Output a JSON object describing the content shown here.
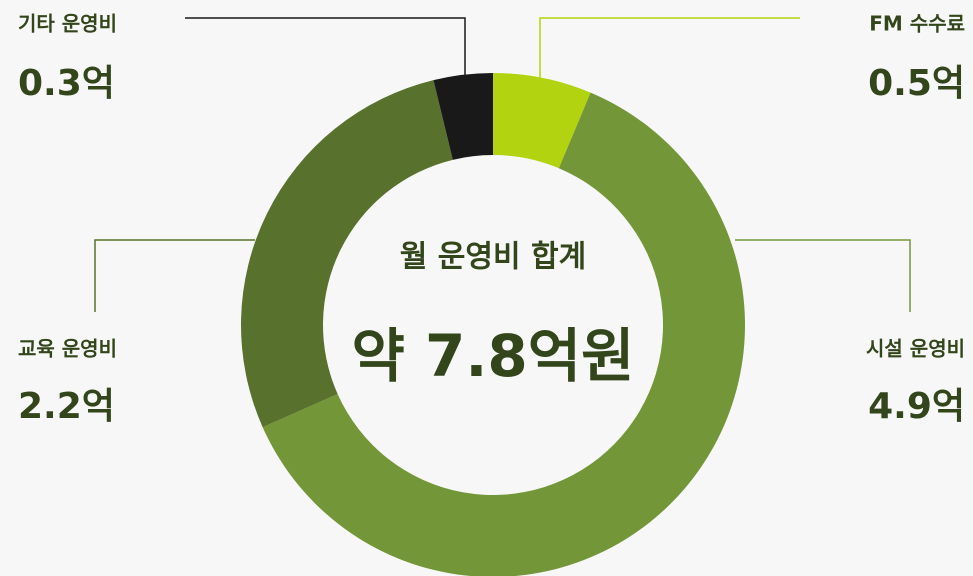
{
  "chart_data": {
    "type": "pie",
    "categories": [
      "FM 수수료",
      "시설 운영비",
      "교육 운영비",
      "기타 운영비"
    ],
    "values": [
      0.5,
      4.9,
      2.2,
      0.3
    ],
    "value_labels": [
      "0.5억",
      "4.9억",
      "2.2억",
      "0.3억"
    ],
    "colors": [
      "#b2d30f",
      "#739738",
      "#58712c",
      "#191919"
    ],
    "annotations": [
      "월 운영비 합계",
      "약 7.8억원"
    ]
  }
}
